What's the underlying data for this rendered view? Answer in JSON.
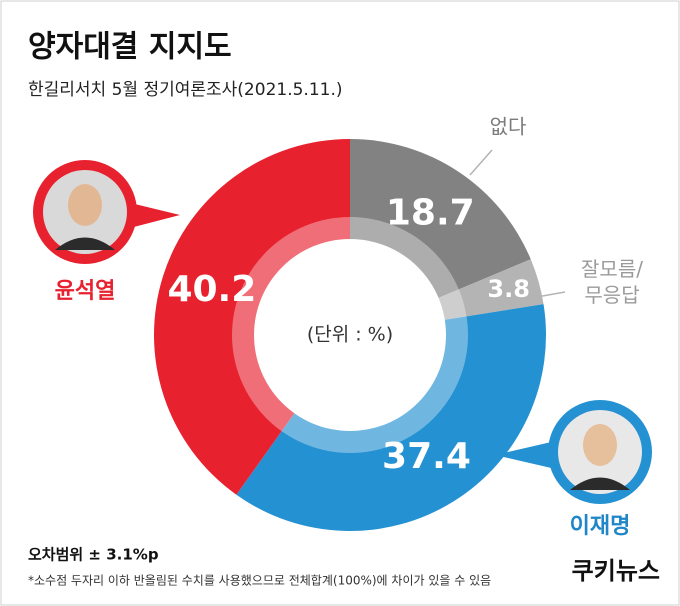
{
  "chart_data": {
    "type": "donut",
    "title": "양자대결 지지도",
    "subtitle": "한길리서치 5월 정기여론조사(2021.5.11.)",
    "center_label": "(단위 : %)",
    "categories": [
      "없다",
      "잘모름/무응답",
      "이재명",
      "윤석열"
    ],
    "values": [
      18.7,
      3.8,
      37.4,
      40.2
    ],
    "colors": [
      "#828282",
      "#b4b4b4",
      "#2391d2",
      "#e8212f"
    ],
    "label_colors": [
      "#7a7a7a",
      "#9a9a9a",
      "#1f86c8",
      "#e8212f"
    ],
    "footer": "오차범위 ± 3.1%p",
    "note": "*소수점 두자리 이하 반올림된 수치를 사용했으므로 전체합계(100%)에 차이가 있을 수 있음",
    "source": "쿠키뉴스"
  }
}
